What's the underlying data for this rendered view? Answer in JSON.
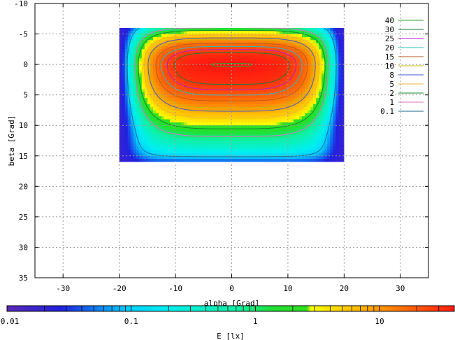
{
  "chart_data": {
    "type": "heatmap",
    "xlabel": "alpha [Grad]",
    "ylabel": "beta [Grad]",
    "xlim": [
      -35,
      35
    ],
    "ylim": [
      -10,
      35
    ],
    "y_axis_inverted": true,
    "x_ticks": [
      -30,
      -20,
      -10,
      0,
      10,
      20,
      30
    ],
    "y_ticks": [
      -10,
      -5,
      0,
      5,
      10,
      15,
      20,
      25,
      30,
      35
    ],
    "grid": true,
    "data_extent": {
      "alpha": [
        -20,
        20
      ],
      "beta": [
        -6,
        16
      ]
    },
    "peak": {
      "alpha": 0,
      "beta": 0,
      "value": 40
    },
    "contour_levels": [
      40,
      30,
      25,
      20,
      15,
      10,
      8,
      5,
      2,
      1,
      0.1
    ],
    "legend": {
      "placement": "top-right",
      "entries": [
        {
          "label": "40",
          "color": "#2ca02c"
        },
        {
          "label": "30",
          "color": "#1a7a3a"
        },
        {
          "label": "25",
          "color": "#b31ad6"
        },
        {
          "label": "20",
          "color": "#20c0c8"
        },
        {
          "label": "15",
          "color": "#b85a1a"
        },
        {
          "label": "10",
          "color": "#c8b400"
        },
        {
          "label": "8",
          "color": "#3a5acc"
        },
        {
          "label": "5",
          "color": "#f0b030"
        },
        {
          "label": "2",
          "color": "#108a30"
        },
        {
          "label": "1",
          "color": "#d870c8"
        },
        {
          "label": "0.1",
          "color": "#1a6a8a"
        }
      ]
    },
    "colorbar": {
      "label": "E [lx]",
      "scale": "log",
      "range": [
        0.01,
        40
      ],
      "tick_labels": [
        "0.01",
        "0.1",
        "1",
        "10"
      ],
      "tick_values": [
        0.01,
        0.1,
        1,
        10
      ]
    }
  }
}
